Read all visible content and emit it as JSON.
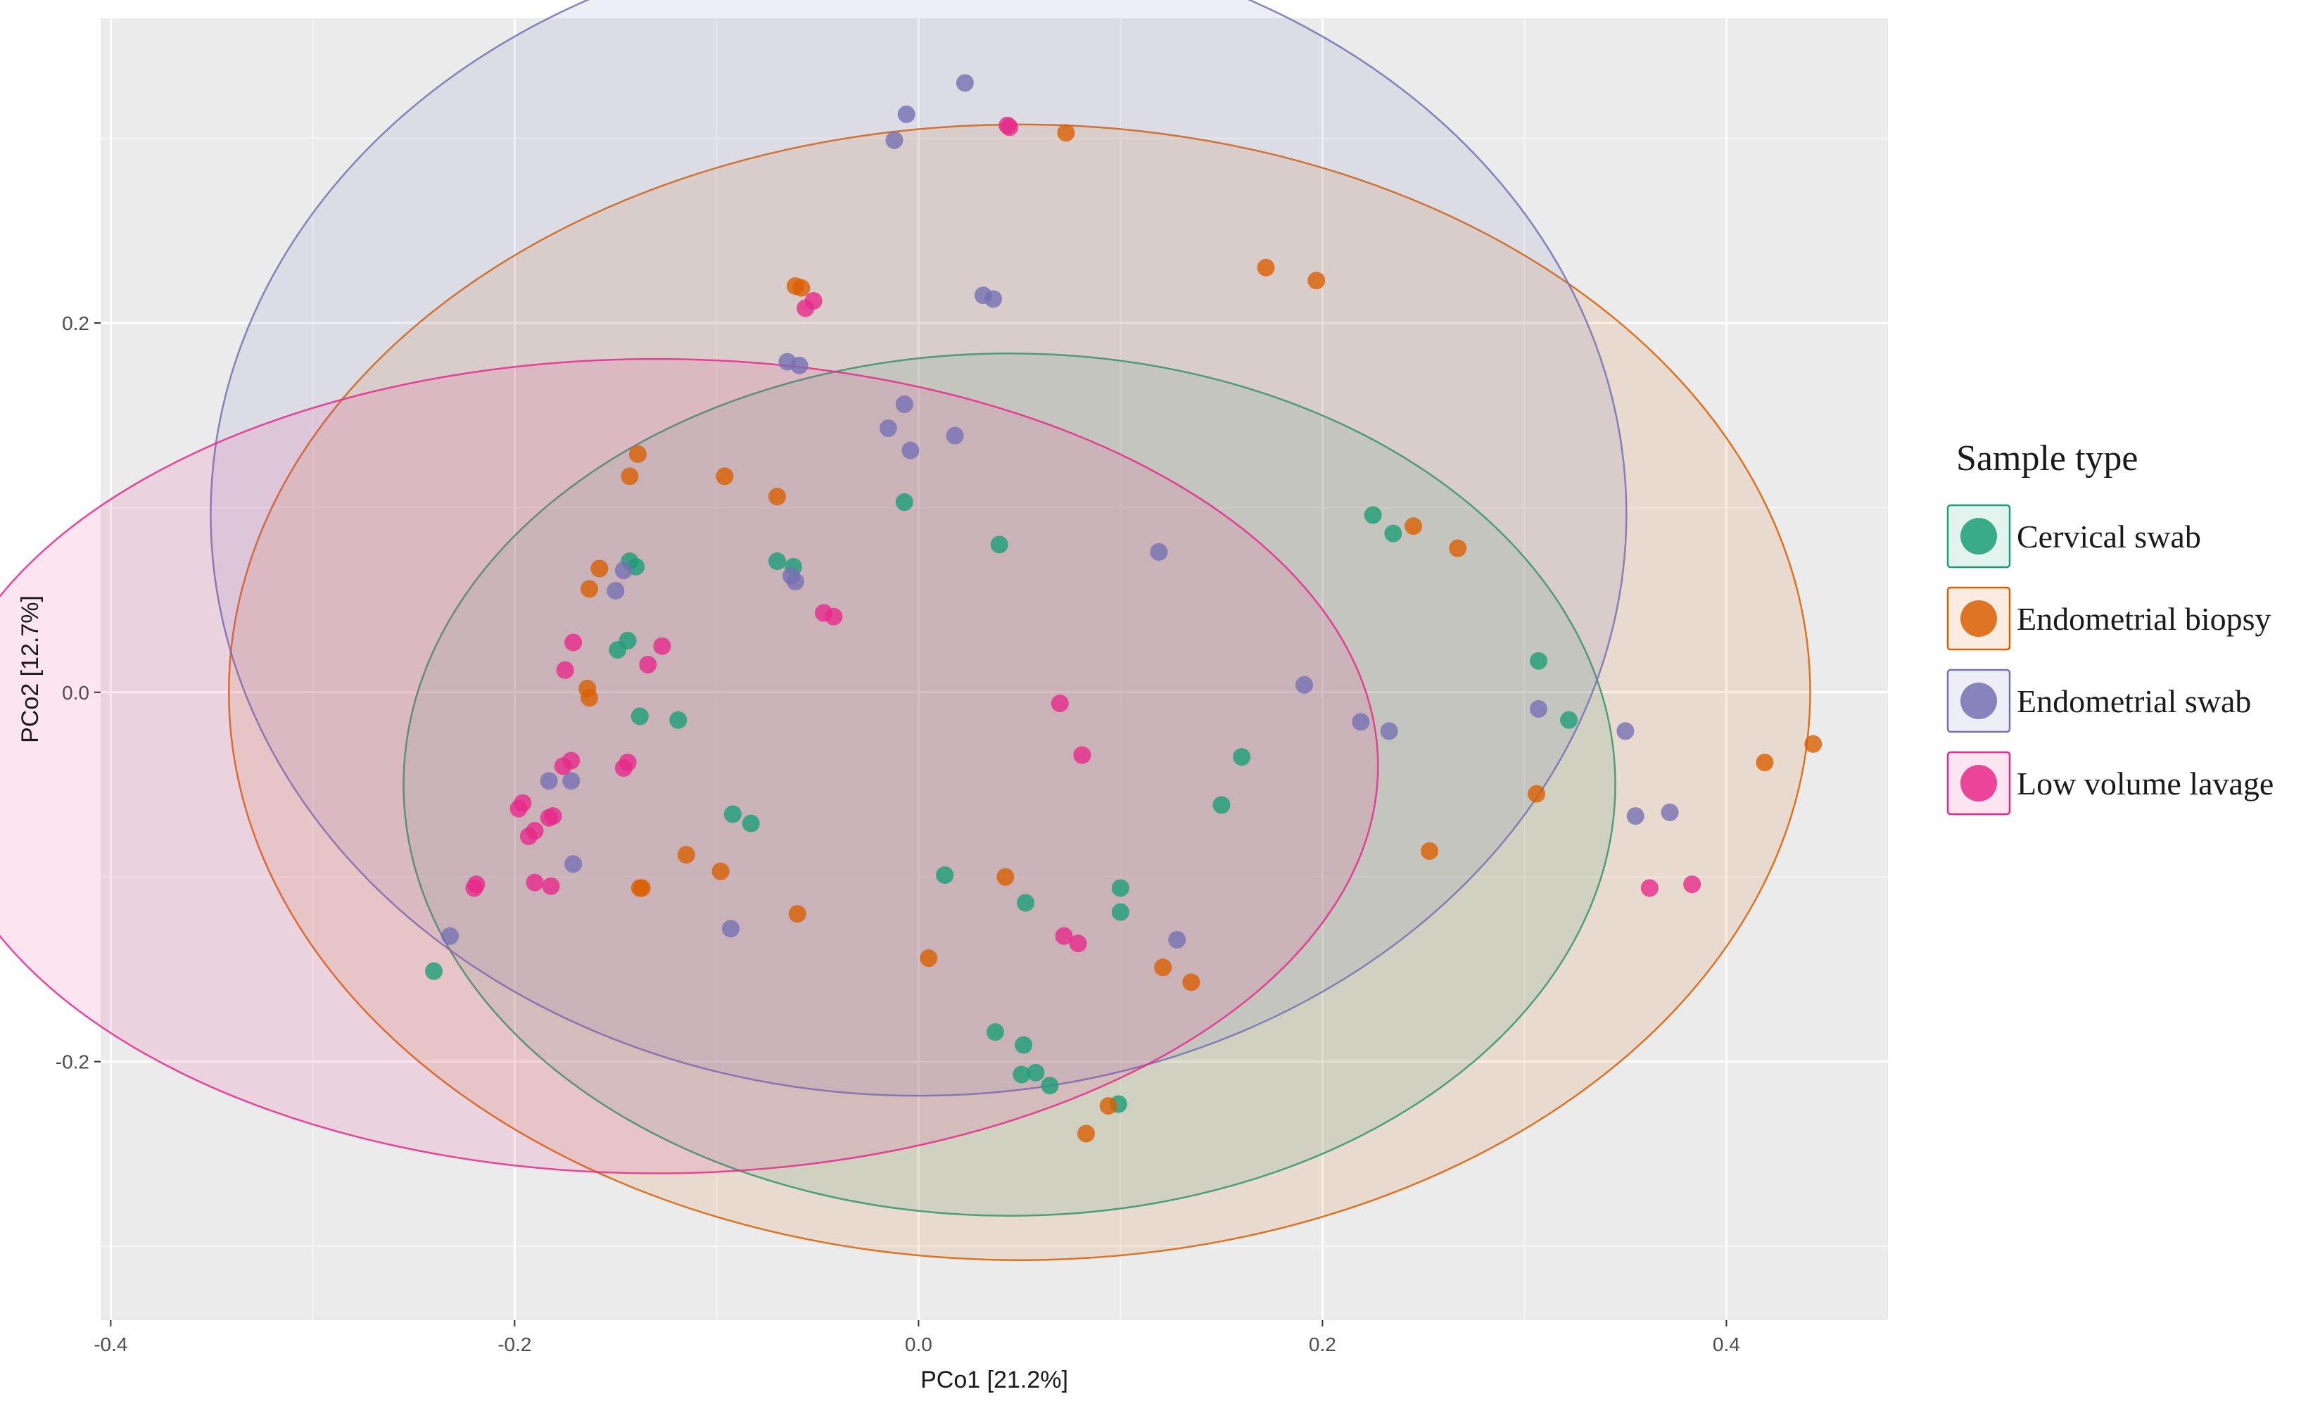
{
  "chart_data": {
    "type": "scatter",
    "title": "",
    "xlabel": "PCo1 [21.2%]",
    "ylabel": "PCo2 [12.7%]",
    "xlim": [
      -0.405,
      0.48
    ],
    "ylim": [
      -0.34,
      0.365
    ],
    "x_ticks": [
      -0.4,
      -0.2,
      0.0,
      0.2,
      0.4
    ],
    "x_tick_labels": [
      "-0.4",
      "-0.2",
      "0.0",
      "0.2",
      "0.4"
    ],
    "y_ticks": [
      -0.2,
      0.0,
      0.2
    ],
    "y_tick_labels": [
      "-0.2",
      "0.0",
      "0.2"
    ],
    "grid": true,
    "legend_position": "right",
    "legend": {
      "title": "Sample type",
      "entries": [
        "Cervical swab",
        "Endometrial biopsy",
        "Endometrial swab",
        "Low volume lavage"
      ]
    },
    "series": [
      {
        "name": "Cervical swab",
        "color": "#1b9e77",
        "ellipse": {
          "cx": 0.045,
          "cy": -0.05,
          "rx": 0.3,
          "ry": 0.2335
        },
        "points": [
          [
            -0.24,
            -0.151
          ],
          [
            -0.143,
            0.071
          ],
          [
            -0.14,
            0.068
          ],
          [
            -0.149,
            0.023
          ],
          [
            -0.144,
            0.028
          ],
          [
            -0.138,
            -0.013
          ],
          [
            -0.119,
            -0.015
          ],
          [
            -0.07,
            0.071
          ],
          [
            -0.062,
            0.068
          ],
          [
            -0.092,
            -0.066
          ],
          [
            -0.083,
            -0.071
          ],
          [
            -0.007,
            0.103
          ],
          [
            0.04,
            0.08
          ],
          [
            0.013,
            -0.099
          ],
          [
            0.053,
            -0.114
          ],
          [
            0.038,
            -0.184
          ],
          [
            0.052,
            -0.191
          ],
          [
            0.051,
            -0.207
          ],
          [
            0.058,
            -0.206
          ],
          [
            0.065,
            -0.213
          ],
          [
            0.1,
            -0.106
          ],
          [
            0.1,
            -0.119
          ],
          [
            0.15,
            -0.061
          ],
          [
            0.16,
            -0.035
          ],
          [
            0.099,
            -0.223
          ],
          [
            0.225,
            0.096
          ],
          [
            0.235,
            0.086
          ],
          [
            0.307,
            0.017
          ],
          [
            0.322,
            -0.015
          ]
        ]
      },
      {
        "name": "Endometrial biopsy",
        "color": "#d95f02",
        "ellipse": {
          "cx": 0.05,
          "cy": 0.0,
          "rx": 0.3915,
          "ry": 0.3075
        },
        "points": [
          [
            -0.139,
            0.129
          ],
          [
            -0.143,
            0.117
          ],
          [
            -0.096,
            0.117
          ],
          [
            -0.158,
            0.067
          ],
          [
            -0.163,
            0.056
          ],
          [
            -0.164,
            0.002
          ],
          [
            -0.163,
            -0.003
          ],
          [
            -0.07,
            0.106
          ],
          [
            -0.061,
            0.22
          ],
          [
            -0.058,
            0.219
          ],
          [
            -0.115,
            -0.088
          ],
          [
            -0.138,
            -0.106
          ],
          [
            -0.137,
            -0.106
          ],
          [
            -0.098,
            -0.097
          ],
          [
            -0.06,
            -0.12
          ],
          [
            0.043,
            -0.1
          ],
          [
            0.005,
            -0.144
          ],
          [
            0.073,
            0.303
          ],
          [
            0.172,
            0.23
          ],
          [
            0.197,
            0.223
          ],
          [
            0.245,
            0.09
          ],
          [
            0.267,
            0.078
          ],
          [
            0.306,
            -0.055
          ],
          [
            0.253,
            -0.086
          ],
          [
            0.121,
            -0.149
          ],
          [
            0.135,
            -0.157
          ],
          [
            0.094,
            -0.224
          ],
          [
            0.083,
            -0.239
          ],
          [
            0.419,
            -0.038
          ],
          [
            0.443,
            -0.028
          ]
        ]
      },
      {
        "name": "Endometrial swab",
        "color": "#7570b3",
        "ellipse": {
          "cx": 0.0,
          "cy": 0.0965,
          "rx": 0.3505,
          "ry": 0.315
        },
        "points": [
          [
            0.023,
            0.33
          ],
          [
            -0.006,
            0.313
          ],
          [
            -0.012,
            0.299
          ],
          [
            0.032,
            0.215
          ],
          [
            0.037,
            0.213
          ],
          [
            -0.065,
            0.179
          ],
          [
            -0.059,
            0.177
          ],
          [
            -0.007,
            0.156
          ],
          [
            -0.015,
            0.143
          ],
          [
            -0.004,
            0.131
          ],
          [
            0.018,
            0.139
          ],
          [
            -0.146,
            0.066
          ],
          [
            -0.15,
            0.055
          ],
          [
            -0.063,
            0.063
          ],
          [
            -0.061,
            0.06
          ],
          [
            0.119,
            0.076
          ],
          [
            0.191,
            0.004
          ],
          [
            0.219,
            -0.016
          ],
          [
            0.233,
            -0.021
          ],
          [
            0.307,
            -0.009
          ],
          [
            0.35,
            -0.021
          ],
          [
            0.355,
            -0.067
          ],
          [
            0.372,
            -0.065
          ],
          [
            -0.183,
            -0.048
          ],
          [
            -0.172,
            -0.048
          ],
          [
            -0.171,
            -0.093
          ],
          [
            -0.232,
            -0.132
          ],
          [
            -0.093,
            -0.128
          ],
          [
            0.128,
            -0.134
          ]
        ]
      },
      {
        "name": "Low volume lavage",
        "color": "#e7298a",
        "ellipse": {
          "cx": -0.13,
          "cy": -0.04,
          "rx": 0.3575,
          "ry": 0.2205
        },
        "points": [
          [
            0.044,
            0.307
          ],
          [
            0.045,
            0.306
          ],
          [
            -0.052,
            0.212
          ],
          [
            -0.056,
            0.208
          ],
          [
            -0.171,
            0.027
          ],
          [
            -0.127,
            0.025
          ],
          [
            -0.134,
            0.015
          ],
          [
            -0.175,
            0.012
          ],
          [
            -0.047,
            0.043
          ],
          [
            -0.042,
            0.041
          ],
          [
            -0.172,
            -0.037
          ],
          [
            -0.176,
            -0.04
          ],
          [
            -0.144,
            -0.038
          ],
          [
            -0.146,
            -0.041
          ],
          [
            -0.196,
            -0.06
          ],
          [
            -0.198,
            -0.063
          ],
          [
            -0.181,
            -0.067
          ],
          [
            -0.183,
            -0.068
          ],
          [
            -0.19,
            -0.075
          ],
          [
            -0.193,
            -0.078
          ],
          [
            -0.219,
            -0.104
          ],
          [
            -0.22,
            -0.106
          ],
          [
            -0.19,
            -0.103
          ],
          [
            -0.182,
            -0.105
          ],
          [
            0.07,
            -0.006
          ],
          [
            0.081,
            -0.034
          ],
          [
            0.072,
            -0.132
          ],
          [
            0.079,
            -0.136
          ],
          [
            0.362,
            -0.106
          ],
          [
            0.383,
            -0.104
          ]
        ]
      }
    ]
  }
}
